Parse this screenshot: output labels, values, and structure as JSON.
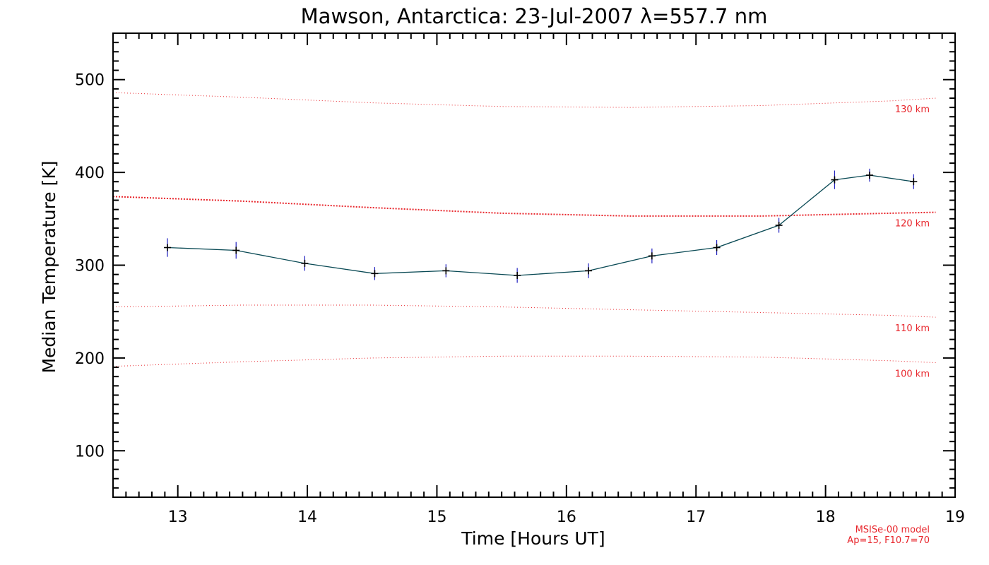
{
  "colors": {
    "axis": "#000000",
    "series_line": "#0a4a55",
    "series_marker": "#000000",
    "error_bar": "#2020c0",
    "model": "#e8262c"
  },
  "chart_data": {
    "type": "line",
    "title": "Mawson, Antarctica: 23-Jul-2007 λ=557.7 nm",
    "xlabel": "Time [Hours UT]",
    "ylabel": "Median Temperature [K]",
    "xlim": [
      12.5,
      19
    ],
    "ylim": [
      50,
      550
    ],
    "xticks": [
      13,
      14,
      15,
      16,
      17,
      18,
      19
    ],
    "yticks": [
      100,
      200,
      300,
      400,
      500
    ],
    "series": [
      {
        "name": "Median Temperature",
        "x": [
          12.92,
          13.45,
          13.98,
          14.52,
          15.07,
          15.62,
          16.17,
          16.66,
          17.16,
          17.64,
          18.07,
          18.34,
          18.68
        ],
        "y": [
          319,
          316,
          302,
          291,
          294,
          289,
          294,
          310,
          319,
          343,
          392,
          397,
          390
        ],
        "error": [
          10,
          9,
          8,
          7,
          7,
          8,
          8,
          8,
          8,
          8,
          10,
          7,
          8
        ]
      }
    ],
    "model_curves": [
      {
        "label": "130 km",
        "x": [
          12.5,
          13.5,
          14.5,
          15.5,
          16.5,
          17.5,
          18.5,
          18.85
        ],
        "y": [
          486,
          481,
          475,
          471,
          470,
          472,
          477,
          480
        ]
      },
      {
        "label": "120 km",
        "x": [
          12.5,
          13.5,
          14.5,
          15.5,
          16.5,
          17.5,
          18.5,
          18.85
        ],
        "y": [
          374,
          369,
          362,
          356,
          353,
          353,
          356,
          357
        ]
      },
      {
        "label": "110 km",
        "x": [
          12.5,
          13.5,
          14.5,
          15.5,
          16.5,
          17.5,
          18.5,
          18.85
        ],
        "y": [
          255,
          257,
          257,
          255,
          252,
          249,
          246,
          244
        ]
      },
      {
        "label": "100 km",
        "x": [
          12.5,
          13.5,
          14.5,
          15.5,
          16.5,
          17.5,
          18.5,
          18.85
        ],
        "y": [
          191,
          196,
          200,
          202,
          202,
          201,
          197,
          195
        ]
      }
    ],
    "model_note": [
      "MSISe-00 model",
      "Ap=15, F10.7=70"
    ]
  }
}
